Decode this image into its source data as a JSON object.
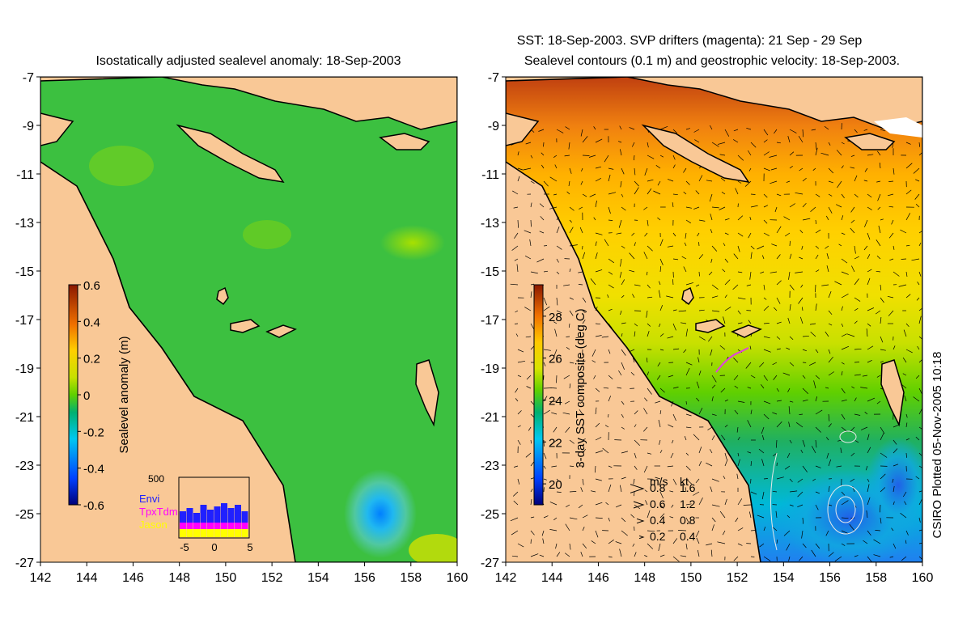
{
  "credit": "CSIRO Plotted 05-Nov-2005 10:18",
  "chart_data": [
    {
      "type": "heatmap",
      "title": "Isostatically adjusted sealevel anomaly: 18-Sep-2003",
      "xticks": [
        "142",
        "144",
        "146",
        "148",
        "150",
        "152",
        "154",
        "156",
        "158",
        "160"
      ],
      "yticks": [
        "-7",
        "-9",
        "-11",
        "-13",
        "-15",
        "-17",
        "-19",
        "-21",
        "-23",
        "-25",
        "-27"
      ],
      "xlim": [
        142,
        160
      ],
      "ylim": [
        -27,
        -7
      ],
      "colorbar": {
        "label": "Sealevel anomaly (m)",
        "ticks": [
          "0.6",
          "0.4",
          "0.2",
          "0",
          "-0.2",
          "-0.4",
          "-0.6"
        ],
        "range": [
          -0.6,
          0.6
        ]
      },
      "inset": {
        "ymax_label": "500",
        "xticks": [
          "-5",
          "0",
          "5"
        ],
        "legend": [
          "Envi",
          "TpxTdm",
          "Jason"
        ],
        "legend_colors": [
          "#2020ff",
          "#ff00ff",
          "#ffff00"
        ]
      },
      "land_color": "#f9c896",
      "field_low": {
        "lon": 156.8,
        "lat": -25.0,
        "value": -0.35
      }
    },
    {
      "type": "heatmap",
      "title_line1": "SST: 18-Sep-2003. SVP drifters (magenta): 21 Sep - 29 Sep",
      "title_line2": "Sealevel contours (0.1 m) and geostrophic velocity: 18-Sep-2003.",
      "xticks": [
        "142",
        "144",
        "146",
        "148",
        "150",
        "152",
        "154",
        "156",
        "158",
        "160"
      ],
      "yticks": [
        "-7",
        "-9",
        "-11",
        "-13",
        "-15",
        "-17",
        "-19",
        "-21",
        "-23",
        "-25",
        "-27"
      ],
      "xlim": [
        142,
        160
      ],
      "ylim": [
        -27,
        -7
      ],
      "colorbar": {
        "label": "3-day SST composite (deg C)",
        "ticks": [
          "28",
          "26",
          "24",
          "22",
          "20"
        ],
        "range": [
          19,
          29.5
        ]
      },
      "velocity_legend": {
        "header_ms": "m/s",
        "header_kt": "kt",
        "rows": [
          {
            "ms": "0.8",
            "kt": "1.6"
          },
          {
            "ms": "0.6",
            "kt": "1.2"
          },
          {
            "ms": "0.4",
            "kt": "0.8"
          },
          {
            "ms": "0.2",
            "kt": "0.4"
          }
        ]
      },
      "land_color": "#f9c896"
    }
  ]
}
